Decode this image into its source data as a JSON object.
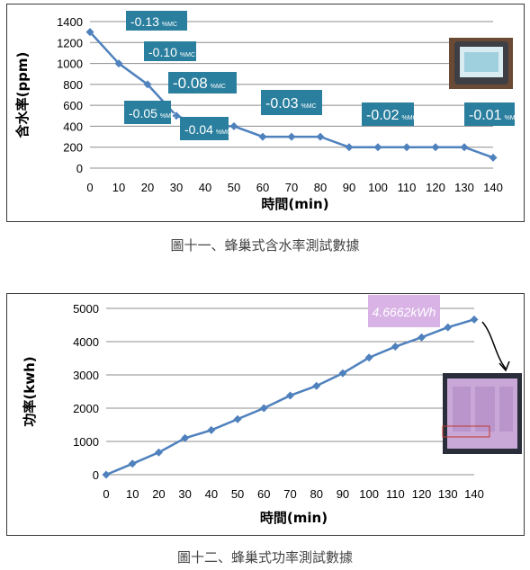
{
  "chart_data": [
    {
      "type": "line",
      "caption": "圖十一、蜂巢式含水率測試數據",
      "xlabel": "時間(min)",
      "ylabel": "含水率(ppm)",
      "x": [
        0,
        10,
        20,
        30,
        40,
        50,
        60,
        70,
        80,
        90,
        100,
        110,
        120,
        130,
        140
      ],
      "values": [
        1300,
        1000,
        800,
        500,
        400,
        400,
        300,
        300,
        300,
        200,
        200,
        200,
        200,
        200,
        100
      ],
      "ylim": [
        0,
        1400
      ],
      "yticks": [
        0,
        200,
        400,
        600,
        800,
        1000,
        1200,
        1400
      ],
      "xticks": [
        0,
        10,
        20,
        30,
        40,
        50,
        60,
        70,
        80,
        90,
        100,
        110,
        120,
        130,
        140
      ],
      "line_color": "#4f81bd",
      "grid": true,
      "annotations": [
        {
          "value": "-0.13",
          "unit": "%MC"
        },
        {
          "value": "-0.10",
          "unit": "%MC"
        },
        {
          "value": "-0.08",
          "unit": "%MC"
        },
        {
          "value": "-0.05",
          "unit": "%MC"
        },
        {
          "value": "-0.04",
          "unit": "%MC"
        },
        {
          "value": "-0.03",
          "unit": "%MC"
        },
        {
          "value": "-0.02",
          "unit": "%MC"
        },
        {
          "value": "-0.01",
          "unit": "%MC"
        }
      ],
      "label_color": "#2b7f9e"
    },
    {
      "type": "line",
      "caption": "圖十二、蜂巢式功率測試數據",
      "xlabel": "時間(min)",
      "ylabel": "功率(kwh)",
      "x": [
        0,
        10,
        20,
        30,
        40,
        50,
        60,
        70,
        80,
        90,
        100,
        110,
        120,
        130,
        140
      ],
      "values": [
        0,
        330,
        670,
        1100,
        1340,
        1670,
        2000,
        2380,
        2670,
        3050,
        3520,
        3850,
        4130,
        4430,
        4666
      ],
      "ylim": [
        0,
        5000
      ],
      "yticks": [
        0,
        1000,
        2000,
        3000,
        4000,
        5000
      ],
      "xticks": [
        0,
        10,
        20,
        30,
        40,
        50,
        60,
        70,
        80,
        90,
        100,
        110,
        120,
        130,
        140
      ],
      "line_color": "#4f81bd",
      "grid": true,
      "annotation": "4.6662kWh",
      "label_color": "#d9b3e6"
    }
  ]
}
